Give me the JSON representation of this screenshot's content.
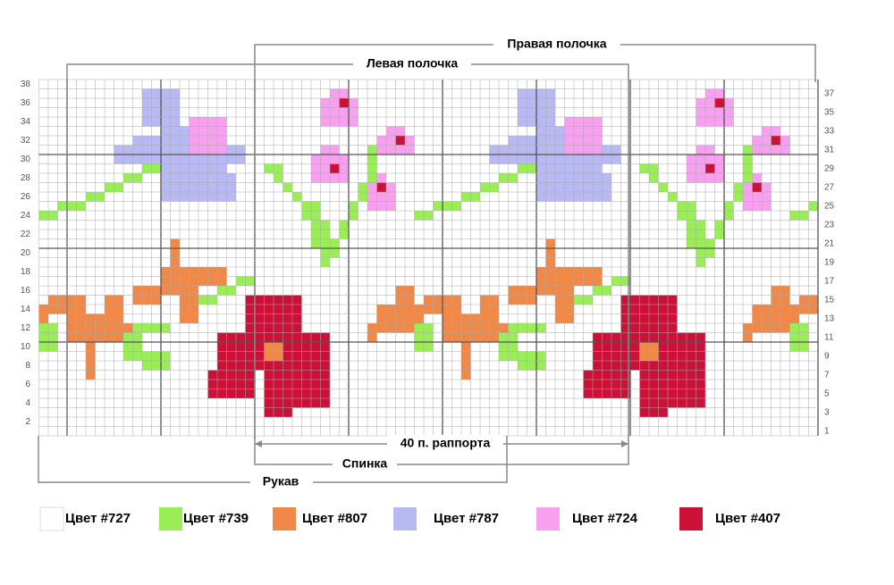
{
  "header": {
    "right_front": "Правая полочка",
    "left_front": "Левая полочка"
  },
  "footer": {
    "repeat": "40 п. раппорта",
    "back": "Спинка",
    "sleeve": "Рукав"
  },
  "left_row_numbers": [
    38,
    36,
    34,
    32,
    30,
    28,
    26,
    24,
    22,
    20,
    18,
    16,
    14,
    12,
    10,
    8,
    6,
    4,
    2
  ],
  "right_row_numbers": [
    37,
    35,
    33,
    31,
    29,
    27,
    25,
    23,
    21,
    19,
    17,
    15,
    13,
    11,
    9,
    7,
    5,
    3,
    1
  ],
  "legend": [
    {
      "label": "Цвет #727",
      "color": "#ffffff"
    },
    {
      "label": "Цвет #739",
      "color": "#99ee55"
    },
    {
      "label": "Цвет #807",
      "color": "#f08848"
    },
    {
      "label": "Цвет #787",
      "color": "#b8b8f2"
    },
    {
      "label": "Цвет #724",
      "color": "#f7a0f0"
    },
    {
      "label": "Цвет #407",
      "color": "#cc1138"
    }
  ]
}
